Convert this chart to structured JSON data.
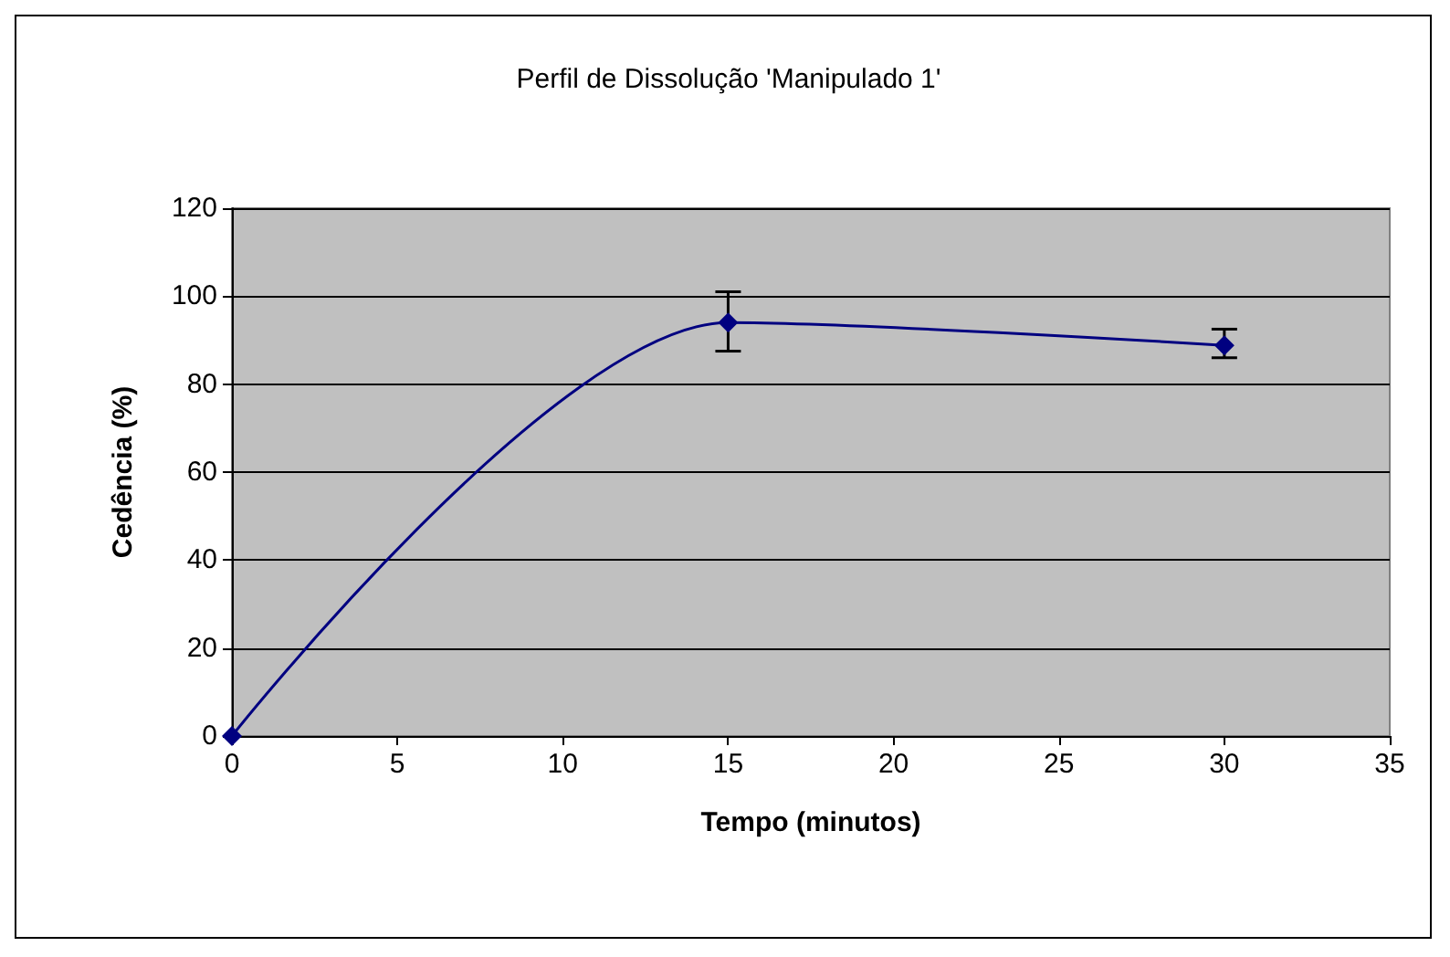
{
  "chart_data": {
    "type": "line",
    "title": "Perfil de Dissolução 'Manipulado 1'",
    "xlabel": "Tempo (minutos)",
    "ylabel": "Cedência (%)",
    "x": [
      0,
      15,
      30
    ],
    "series": [
      {
        "color": "#000080",
        "values": [
          0,
          94,
          88.8
        ],
        "errors": [
          null,
          [
            87.5,
            101
          ],
          [
            86,
            92.5
          ]
        ]
      }
    ],
    "xlim": [
      0,
      35
    ],
    "xticks": [
      0,
      5,
      10,
      15,
      20,
      25,
      30,
      35
    ],
    "ylim": [
      0,
      120
    ],
    "yticks": [
      0,
      20,
      40,
      60,
      80,
      100,
      120
    ],
    "grid": "y",
    "marker": "diamond",
    "line_style": "solid"
  }
}
